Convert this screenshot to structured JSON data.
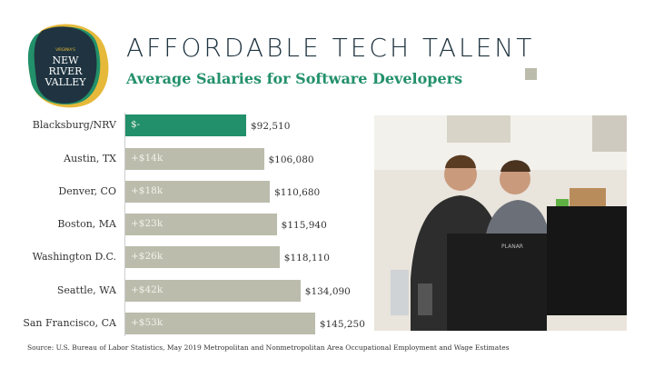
{
  "logo": {
    "small": "VIRGINIA'S",
    "line1": "NEW",
    "line2": "RIVER",
    "line3": "VALLEY"
  },
  "header": {
    "title": "AFFORDABLE TECH TALENT",
    "subtitle": "Average Salaries for Software Developers"
  },
  "chart_data": {
    "type": "bar",
    "orientation": "horizontal",
    "title": "Average Salaries for Software Developers",
    "categories": [
      "Blacksburg/NRV",
      "Austin, TX",
      "Denver, CO",
      "Boston, MA",
      "Washington D.C.",
      "Seattle, WA",
      "San Francisco, CA"
    ],
    "values": [
      92510,
      106080,
      110680,
      115940,
      118110,
      134090,
      145250
    ],
    "value_labels": [
      "$92,510",
      "$106,080",
      "$110,680",
      "$115,940",
      "$118,110",
      "$134,090",
      "$145,250"
    ],
    "difference_labels": [
      "$-",
      "+$14k",
      "+$18k",
      "+$23k",
      "+$26k",
      "+$42k",
      "+$53k"
    ],
    "colors": [
      "#22906a",
      "#bbbcac",
      "#bbbcac",
      "#bbbcac",
      "#bbbcac",
      "#bbbcac",
      "#bbbcac"
    ],
    "xlim": [
      0,
      150000
    ]
  },
  "source": "Source: U.S. Bureau of Labor Statistics, May 2019 Metropolitan and Nonmetropolitan Area Occupational Employment and Wage Estimates",
  "photo": {
    "monitor_brand": "PLANAR"
  }
}
